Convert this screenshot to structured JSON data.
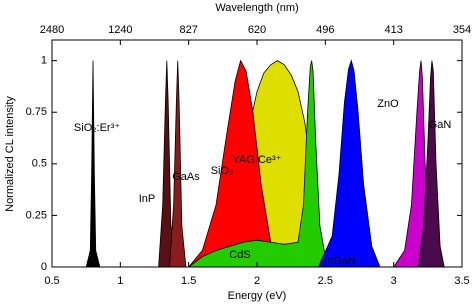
{
  "chart_data": {
    "type": "area",
    "xlabel": "Energy (eV)",
    "ylabel": "Normalized CL intensity",
    "x2label": "Wavelength (nm)",
    "xlim": [
      0.5,
      3.5
    ],
    "ylim": [
      0,
      1.1
    ],
    "xticks": [
      0.5,
      1,
      1.5,
      2,
      2.5,
      3,
      3.5
    ],
    "x2ticks": [
      {
        "value": 0.5,
        "label": "2480"
      },
      {
        "value": 1,
        "label": "1240"
      },
      {
        "value": 1.5,
        "label": "827"
      },
      {
        "value": 2,
        "label": "620"
      },
      {
        "value": 2.5,
        "label": "496"
      },
      {
        "value": 3,
        "label": "413"
      },
      {
        "value": 3.5,
        "label": "354"
      }
    ],
    "yticks": [
      0,
      0.25,
      0.5,
      0.75,
      1
    ],
    "series": [
      {
        "name": "YAG:Ce³⁺",
        "color": "#dede00",
        "x": [
          1.6,
          1.75,
          1.85,
          1.95,
          2.0,
          2.05,
          2.1,
          2.15,
          2.2,
          2.25,
          2.3,
          2.35,
          2.4,
          2.45,
          2.5
        ],
        "values": [
          0,
          0.1,
          0.35,
          0.7,
          0.85,
          0.94,
          0.98,
          1,
          0.98,
          0.93,
          0.85,
          0.7,
          0.45,
          0.2,
          0
        ]
      },
      {
        "name": "SiO₂",
        "color": "#ff0000",
        "x": [
          1.5,
          1.6,
          1.7,
          1.78,
          1.84,
          1.88,
          1.92,
          1.97,
          2.03,
          2.1,
          2.2
        ],
        "values": [
          0,
          0.08,
          0.3,
          0.65,
          0.9,
          1,
          0.95,
          0.75,
          0.4,
          0.12,
          0
        ]
      },
      {
        "name": "CdS",
        "color": "#22cc00",
        "x": [
          1.5,
          1.6,
          1.7,
          1.8,
          1.9,
          2.0,
          2.1,
          2.2,
          2.3,
          2.34,
          2.37,
          2.39,
          2.4,
          2.41,
          2.43,
          2.46,
          2.5,
          2.55
        ],
        "values": [
          0,
          0.05,
          0.08,
          0.1,
          0.12,
          0.13,
          0.12,
          0.11,
          0.12,
          0.3,
          0.75,
          0.97,
          1,
          0.95,
          0.6,
          0.2,
          0.05,
          0
        ]
      },
      {
        "name": "SiO₂:Er³⁺",
        "color": "#000000",
        "x": [
          0.75,
          0.78,
          0.79,
          0.8,
          0.81,
          0.82,
          0.85
        ],
        "values": [
          0,
          0.08,
          0.45,
          1,
          0.45,
          0.08,
          0
        ]
      },
      {
        "name": "InP",
        "color": "#5a0f14",
        "x": [
          1.28,
          1.31,
          1.33,
          1.34,
          1.35,
          1.37,
          1.4
        ],
        "values": [
          0,
          0.3,
          0.8,
          1,
          0.8,
          0.2,
          0
        ]
      },
      {
        "name": "GaAs",
        "color": "#8b1c1c",
        "x": [
          1.36,
          1.39,
          1.41,
          1.42,
          1.43,
          1.45,
          1.48
        ],
        "values": [
          0,
          0.3,
          0.8,
          1,
          0.8,
          0.2,
          0
        ]
      },
      {
        "name": "InGaN",
        "color": "#0000ff",
        "x": [
          2.45,
          2.55,
          2.6,
          2.64,
          2.67,
          2.69,
          2.71,
          2.74,
          2.78,
          2.84,
          2.9
        ],
        "values": [
          0,
          0.15,
          0.45,
          0.8,
          0.96,
          1,
          0.95,
          0.75,
          0.4,
          0.1,
          0
        ]
      },
      {
        "name": "ZnO",
        "color": "#cc00cc",
        "x": [
          3.0,
          3.08,
          3.13,
          3.17,
          3.19,
          3.2,
          3.21,
          3.23,
          3.26,
          3.3
        ],
        "values": [
          0,
          0.08,
          0.3,
          0.75,
          0.95,
          1,
          0.92,
          0.5,
          0.08,
          0
        ]
      },
      {
        "name": "GaN",
        "color": "#4b0a4b",
        "x": [
          3.18,
          3.22,
          3.25,
          3.27,
          3.28,
          3.29,
          3.31,
          3.34,
          3.37
        ],
        "values": [
          0,
          0.2,
          0.6,
          0.92,
          1,
          0.95,
          0.5,
          0.1,
          0
        ]
      }
    ]
  }
}
